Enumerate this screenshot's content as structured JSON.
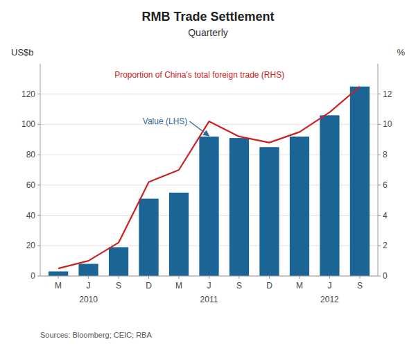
{
  "chart_data": {
    "type": "bar",
    "title": "RMB Trade Settlement",
    "subtitle": "Quarterly",
    "source": "Sources: Bloomberg; CEIC; RBA",
    "y_label": "US$b",
    "y2_label": "%",
    "categories": [
      "M",
      "J",
      "S",
      "D",
      "M",
      "J",
      "S",
      "D",
      "M",
      "J",
      "S"
    ],
    "year_labels": [
      {
        "label": "2010",
        "index": 1
      },
      {
        "label": "2011",
        "index": 5
      },
      {
        "label": "2012",
        "index": 9
      }
    ],
    "series": [
      {
        "type": "bar",
        "color": "#1a6496",
        "values": [
          3,
          8,
          19,
          51,
          55,
          92,
          91,
          85,
          92,
          106,
          125
        ]
      },
      {
        "type": "line",
        "axis": "y2",
        "color": "#cc2222",
        "values": [
          0.5,
          1.0,
          2.2,
          6.2,
          7.0,
          10.2,
          9.2,
          8.8,
          9.5,
          10.8,
          12.5
        ]
      }
    ],
    "ylim": [
      0,
      140
    ],
    "yticks": [
      0,
      20,
      40,
      60,
      80,
      100,
      120
    ],
    "y2lim": [
      0,
      14
    ],
    "y2ticks": [
      0,
      2,
      4,
      6,
      8,
      10,
      12
    ],
    "grid": true,
    "annotations": [
      {
        "text": "Value (LHS)",
        "color": "#336699",
        "arrow_to_index": 5
      },
      {
        "text": "Proportion of China's total foreign trade (RHS)",
        "color": "#cc2222"
      }
    ]
  }
}
